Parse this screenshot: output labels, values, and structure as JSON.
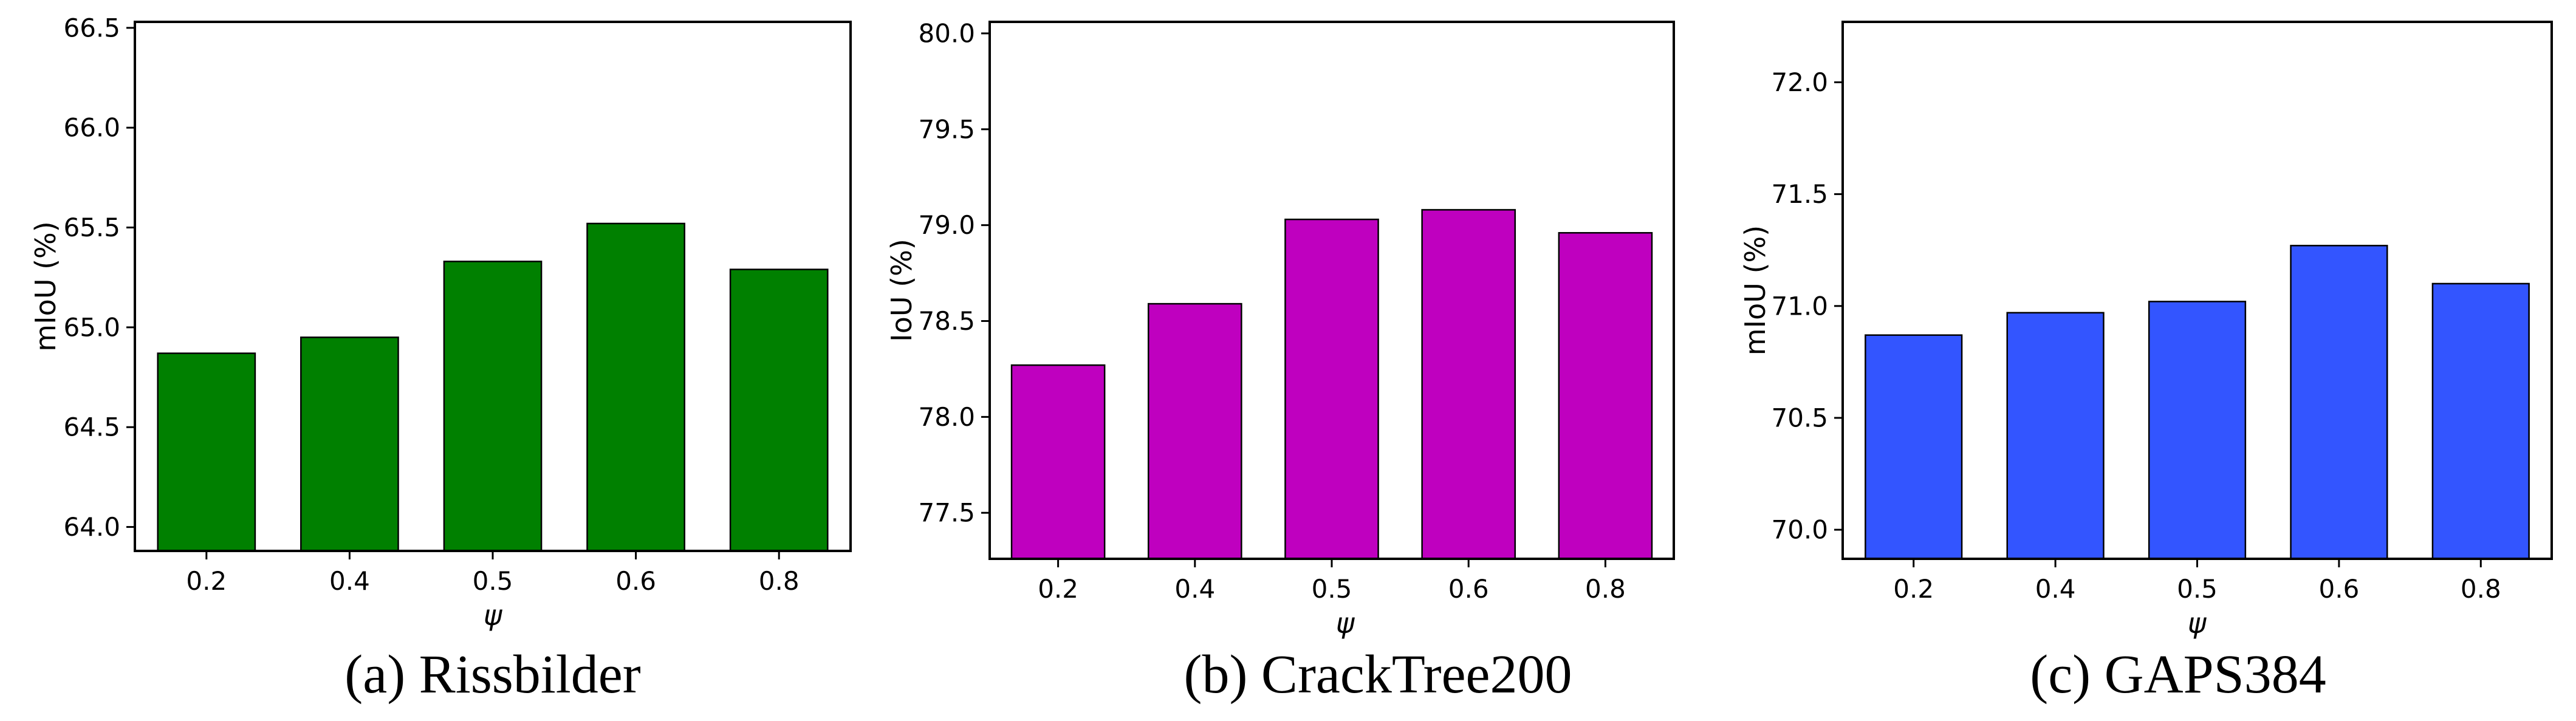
{
  "chart_data": [
    {
      "type": "bar",
      "categories": [
        "0.2",
        "0.4",
        "0.5",
        "0.6",
        "0.8"
      ],
      "values": [
        64.87,
        64.95,
        65.33,
        65.52,
        65.29
      ],
      "ylim": [
        63.88,
        66.53
      ],
      "yticks": [
        "64.0",
        "64.5",
        "65.0",
        "65.5",
        "66.0",
        "66.5"
      ],
      "xlabel": "ψ",
      "ylabel": "mIoU (%)",
      "color": "#008000",
      "caption": "(a)  Rissbilder",
      "grid": false
    },
    {
      "type": "bar",
      "categories": [
        "0.2",
        "0.4",
        "0.5",
        "0.6",
        "0.8"
      ],
      "values": [
        78.27,
        78.59,
        79.03,
        79.08,
        78.96
      ],
      "ylim": [
        77.26,
        80.06
      ],
      "yticks": [
        "77.5",
        "78.0",
        "78.5",
        "79.0",
        "79.5",
        "80.0"
      ],
      "xlabel": "ψ",
      "ylabel": "IoU (%)",
      "color": "#bf00bf",
      "caption": "(b)  CrackTree200",
      "grid": false
    },
    {
      "type": "bar",
      "categories": [
        "0.2",
        "0.4",
        "0.5",
        "0.6",
        "0.8"
      ],
      "values": [
        70.87,
        70.97,
        71.02,
        71.27,
        71.1
      ],
      "ylim": [
        69.87,
        72.27
      ],
      "yticks": [
        "70.0",
        "70.5",
        "71.0",
        "71.5",
        "72.0"
      ],
      "xlabel": "ψ",
      "ylabel": "mIoU (%)",
      "color": "#3355ff",
      "caption": "(c)  GAPS384",
      "grid": false
    }
  ]
}
